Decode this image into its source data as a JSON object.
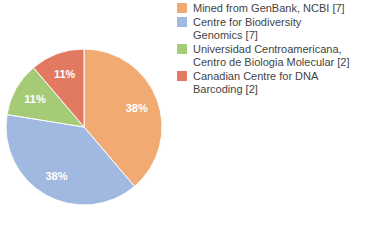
{
  "chart_data": {
    "type": "pie",
    "categories": [
      "Mined from GenBank, NCBI [7]",
      "Centre for Biodiversity Genomics [7]",
      "Universidad Centroamericana, Centro de Biologia Molecular [2]",
      "Canadian Centre for DNA Barcoding [2]"
    ],
    "values": [
      38,
      38,
      11,
      11
    ],
    "value_labels": [
      "38%",
      "38%",
      "11%",
      "11%"
    ],
    "colors": [
      "#f0aa72",
      "#a1b9e1",
      "#a5cb77",
      "#e27a62"
    ],
    "data_labels": true,
    "legend": "top-right"
  }
}
